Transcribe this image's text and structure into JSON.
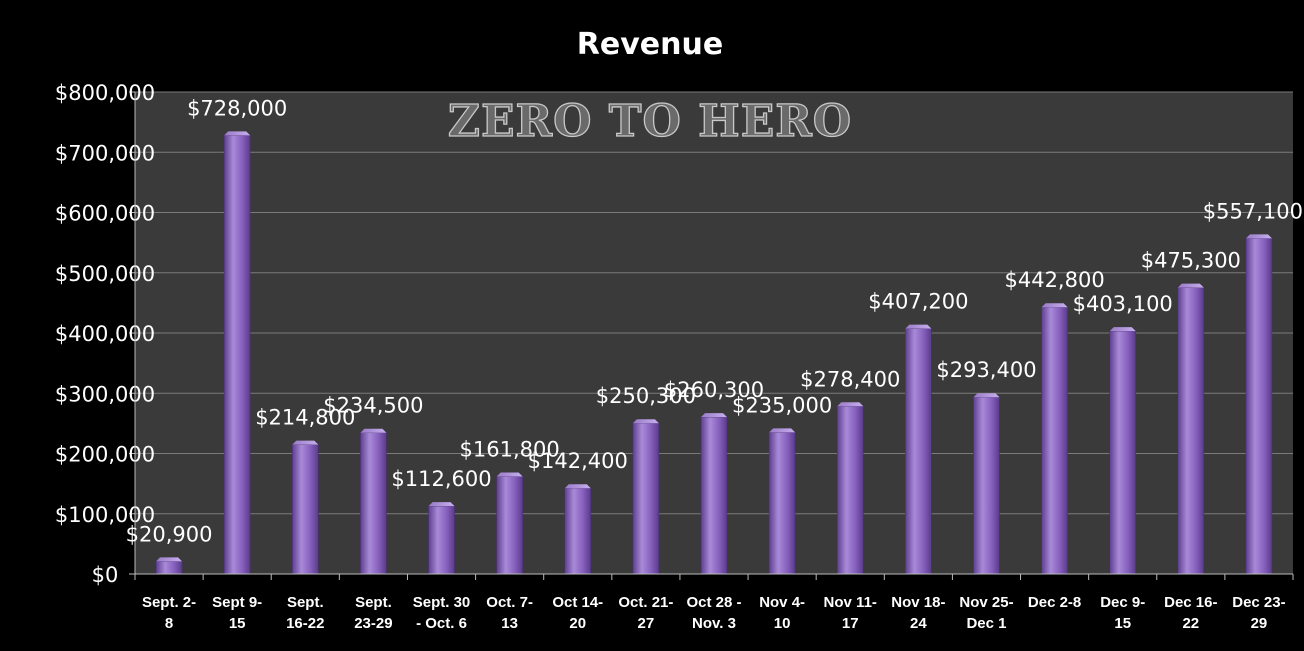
{
  "chart_data": {
    "type": "bar",
    "title": "Revenue",
    "watermark": "ZERO TO HERO",
    "categories": [
      [
        "Sept. 2-",
        "8"
      ],
      [
        "Sept 9-",
        "15"
      ],
      [
        "Sept.",
        "16-22"
      ],
      [
        "Sept.",
        "23-29"
      ],
      [
        "Sept. 30",
        "- Oct. 6"
      ],
      [
        "Oct. 7-",
        "13"
      ],
      [
        "Oct 14-",
        "20"
      ],
      [
        "Oct. 21-",
        "27"
      ],
      [
        "Oct 28 -",
        "Nov. 3"
      ],
      [
        "Nov 4-",
        "10"
      ],
      [
        "Nov 11-",
        "17"
      ],
      [
        "Nov 18-",
        "24"
      ],
      [
        "Nov 25-",
        "Dec 1"
      ],
      [
        "Dec 2-8",
        ""
      ],
      [
        "Dec 9-",
        "15"
      ],
      [
        "Dec 16-",
        "22"
      ],
      [
        "Dec 23-",
        "29"
      ]
    ],
    "values": [
      20900,
      728000,
      214800,
      234500,
      112600,
      161800,
      142400,
      250300,
      260300,
      235000,
      278400,
      407200,
      293400,
      442800,
      403100,
      475300,
      557100
    ],
    "data_labels": [
      "$20,900",
      "$728,000",
      "$214,800",
      "$234,500",
      "$112,600",
      "$161,800",
      "$142,400",
      "$250,300",
      "$260,300",
      "$235,000",
      "$278,400",
      "$407,200",
      "$293,400",
      "$442,800",
      "$403,100",
      "$475,300",
      "$557,100"
    ],
    "yticks": [
      0,
      100000,
      200000,
      300000,
      400000,
      500000,
      600000,
      700000,
      800000
    ],
    "ytick_labels": [
      "$0",
      "$100,000",
      "$200,000",
      "$300,000",
      "$400,000",
      "$500,000",
      "$600,000",
      "$700,000",
      "$800,000"
    ],
    "ylim": [
      0,
      800000
    ],
    "grid": true,
    "legend": "none",
    "colors": {
      "background": "#000000",
      "plot_area": "#3a3a3a",
      "gridline": "#7a7a7a",
      "bar_light": "#a98ad8",
      "bar_mid": "#8660bd",
      "bar_dark": "#5e3f90",
      "text": "#ffffff"
    }
  }
}
